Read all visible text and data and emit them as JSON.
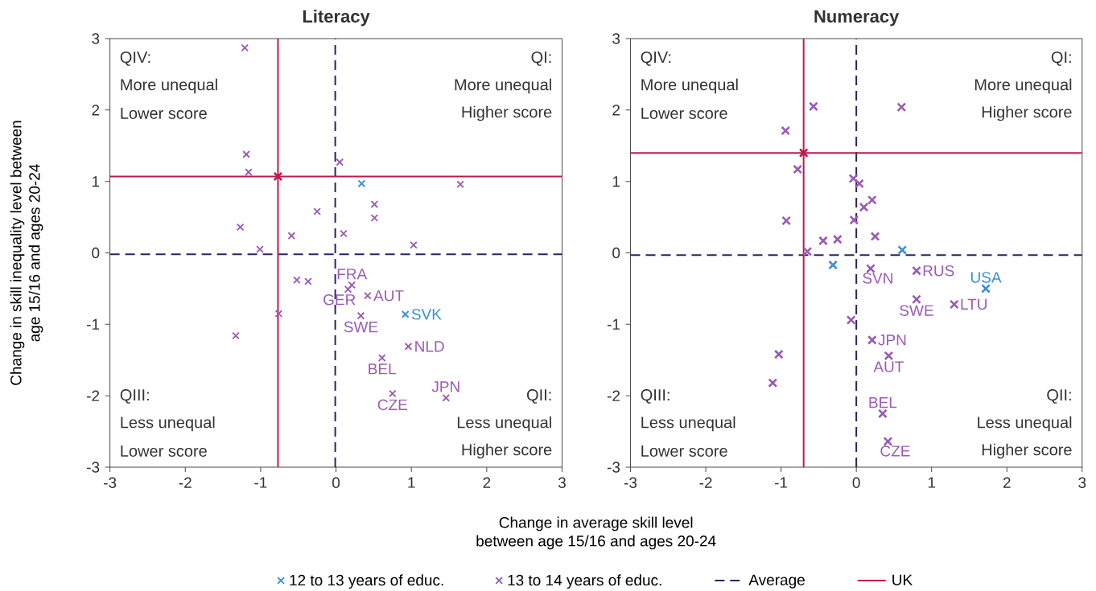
{
  "chart_data": [
    {
      "type": "scatter",
      "title": "Literacy",
      "xlabel": "Change in average skill level between age 15/16 and ages 20-24",
      "ylabel": "Change in skill inequality level between age 15/16 and ages 20-24",
      "xlim": [
        -3,
        3
      ],
      "ylim": [
        -3,
        3
      ],
      "xticks": [
        -3,
        -2,
        -1,
        0,
        1,
        2,
        3
      ],
      "yticks": [
        -3,
        -2,
        -1,
        0,
        1,
        2,
        3
      ],
      "marker": "cross",
      "legend": "bottom",
      "series": [
        {
          "name": "12 to 13 years of educ.",
          "color": "#3a8fd8",
          "x": [
            0.34,
            0.92
          ],
          "values": [
            0.97,
            -0.86
          ]
        },
        {
          "name": "13 to 14 years of educ.",
          "color": "#9a5bb5",
          "x": [
            -1.21,
            -1.19,
            -1.16,
            0.05,
            1.65,
            0.51,
            0.51,
            -0.25,
            -1.27,
            -0.59,
            0.1,
            1.03,
            -1.01,
            -0.52,
            -0.37,
            0.21,
            0.16,
            0.42,
            0.33,
            -0.76,
            -1.33,
            0.96,
            0.61,
            0.75,
            1.46
          ],
          "values": [
            2.87,
            1.38,
            1.13,
            1.27,
            0.96,
            0.68,
            0.49,
            0.58,
            0.36,
            0.24,
            0.27,
            0.11,
            0.05,
            -0.38,
            -0.4,
            -0.45,
            -0.51,
            -0.6,
            -0.88,
            -0.85,
            -1.16,
            -1.31,
            -1.47,
            -1.97,
            -2.03
          ]
        },
        {
          "color": "#c0184c",
          "x": [
            -0.77
          ],
          "values": [
            1.07
          ]
        }
      ],
      "ref_lines": [
        {
          "axis": "x",
          "value": -0.01,
          "label": "Average",
          "color": "#2e2160",
          "line_style": "dashed"
        },
        {
          "axis": "y",
          "value": -0.02,
          "color": "#2e2160",
          "line_style": "dashed"
        },
        {
          "axis": "x",
          "value": -0.77,
          "label": "UK",
          "color": "#c0184c",
          "line_style": "solid"
        },
        {
          "axis": "y",
          "value": 1.07,
          "color": "#c0184c",
          "line_style": "solid"
        }
      ],
      "annotations": [
        "QIV:",
        "More unequal",
        "Lower score",
        "QI:",
        "More unequal",
        "Higher score",
        "QIII:",
        "Less unequal",
        "Lower score",
        "QII:",
        "Less unequal",
        "Higher score",
        {
          "text": "FRA",
          "x": 0.21,
          "y": -0.45
        },
        {
          "text": "GER",
          "x": 0.16,
          "y": -0.51
        },
        {
          "text": "AUT",
          "x": 0.42,
          "y": -0.6
        },
        {
          "text": "SVK",
          "x": 0.92,
          "y": -0.86
        },
        {
          "text": "SWE",
          "x": 0.33,
          "y": -0.88
        },
        {
          "text": "NLD",
          "x": 0.96,
          "y": -1.31
        },
        {
          "text": "BEL",
          "x": 0.61,
          "y": -1.47
        },
        {
          "text": "JPN",
          "x": 1.46,
          "y": -2.03
        },
        {
          "text": "CZE",
          "x": 0.75,
          "y": -1.97
        }
      ]
    },
    {
      "type": "scatter",
      "title": "Numeracy",
      "xlim": [
        -3,
        3
      ],
      "ylim": [
        -3,
        3
      ],
      "xticks": [
        -3,
        -2,
        -1,
        0,
        1,
        2,
        3
      ],
      "yticks": [
        -3,
        -2,
        -1,
        0,
        1,
        2,
        3
      ],
      "marker": "cross",
      "series": [
        {
          "color": "#3a8fd8",
          "x": [
            0.61,
            -0.31,
            1.72
          ],
          "values": [
            0.04,
            -0.17,
            -0.5
          ]
        },
        {
          "color": "#9a5bb5",
          "x": [
            -0.57,
            0.6,
            -0.94,
            -0.78,
            -0.04,
            0.04,
            0.21,
            0.1,
            -0.93,
            -0.03,
            0.25,
            -0.44,
            -0.25,
            -0.65,
            0.19,
            0.8,
            0.8,
            1.3,
            -0.07,
            0.21,
            0.43,
            -1.03,
            -1.11,
            0.35,
            0.42
          ],
          "values": [
            2.05,
            2.04,
            1.71,
            1.17,
            1.04,
            0.97,
            0.74,
            0.64,
            0.45,
            0.46,
            0.23,
            0.17,
            0.19,
            0.02,
            -0.22,
            -0.25,
            -0.65,
            -0.72,
            -0.94,
            -1.22,
            -1.44,
            -1.42,
            -1.82,
            -2.25,
            -2.64
          ]
        },
        {
          "color": "#c0184c",
          "x": [
            -0.7
          ],
          "values": [
            1.4
          ]
        }
      ],
      "ref_lines": [
        {
          "axis": "x",
          "value": 0.0,
          "color": "#2e2160",
          "line_style": "dashed"
        },
        {
          "axis": "y",
          "value": -0.03,
          "color": "#2e2160",
          "line_style": "dashed"
        },
        {
          "axis": "x",
          "value": -0.7,
          "color": "#c0184c",
          "line_style": "solid"
        },
        {
          "axis": "y",
          "value": 1.4,
          "color": "#c0184c",
          "line_style": "solid"
        }
      ],
      "annotations": [
        "QIV:",
        "More unequal",
        "Lower score",
        "QI:",
        "More unequal",
        "Higher score",
        "QIII:",
        "Less unequal",
        "Lower score",
        "QII:",
        "Less unequal",
        "Higher score",
        {
          "text": "SVN",
          "x": 0.19,
          "y": -0.22
        },
        {
          "text": "RUS",
          "x": 0.8,
          "y": -0.25
        },
        {
          "text": "USA",
          "x": 1.72,
          "y": -0.5
        },
        {
          "text": "SWE",
          "x": 0.8,
          "y": -0.65
        },
        {
          "text": "LTU",
          "x": 1.3,
          "y": -0.72
        },
        {
          "text": "JPN",
          "x": 0.21,
          "y": -1.22
        },
        {
          "text": "AUT",
          "x": 0.43,
          "y": -1.44
        },
        {
          "text": "BEL",
          "x": 0.35,
          "y": -2.25
        },
        {
          "text": "CZE",
          "x": 0.42,
          "y": -2.64
        }
      ]
    }
  ]
}
